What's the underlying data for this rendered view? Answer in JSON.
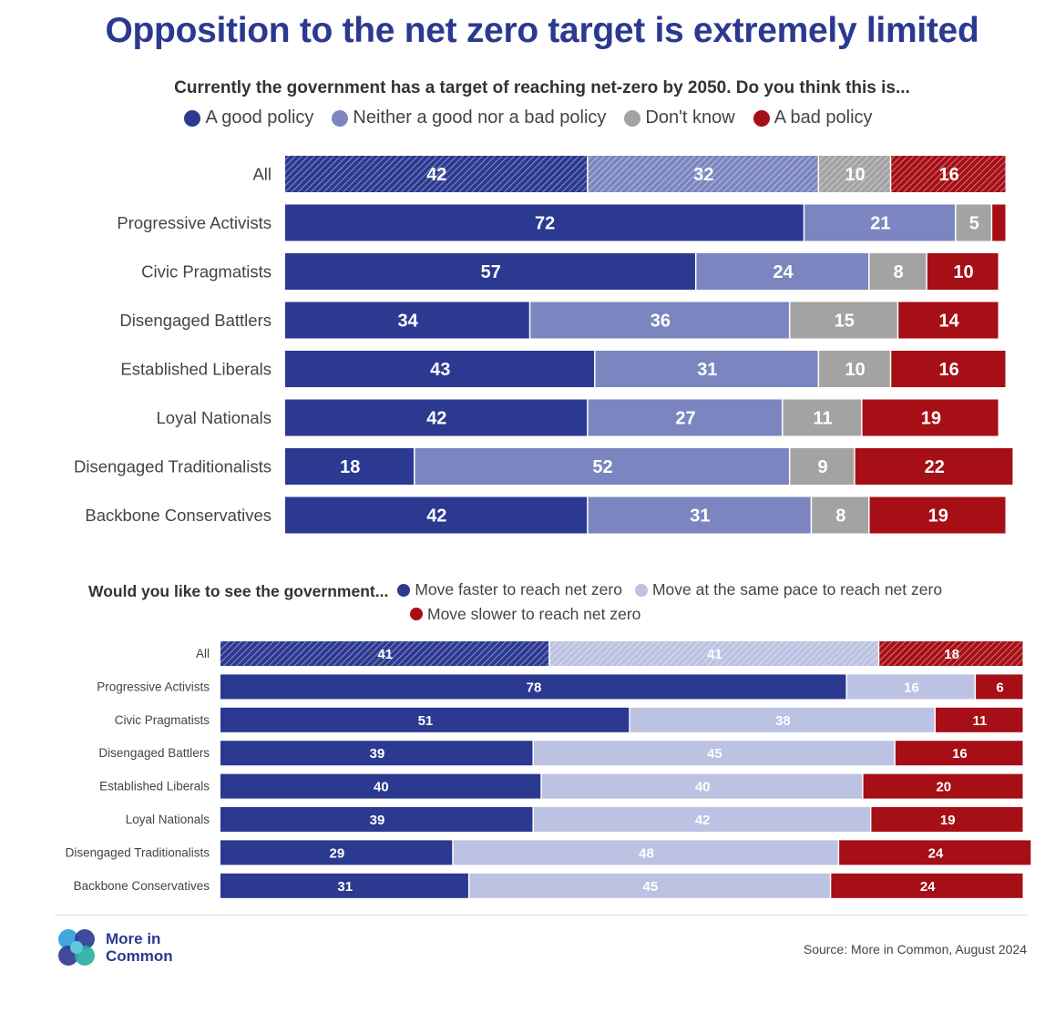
{
  "title": "Opposition to the net zero target is extremely limited",
  "colors": {
    "good": "#2b3990",
    "neither": "#7b86c0",
    "dontknow": "#a3a3a3",
    "bad": "#a50f15",
    "faster": "#2b3990",
    "same": "#bcc2e2",
    "slower": "#a50f15"
  },
  "chart_data": [
    {
      "type": "bar",
      "orientation": "horizontal",
      "stacked": true,
      "title": "Currently the government has a target of reaching net-zero by 2050. Do you think this is...",
      "categories": [
        "All",
        "Progressive Activists",
        "Civic Pragmatists",
        "Disengaged Battlers",
        "Established Liberals",
        "Loyal Nationals",
        "Disengaged Traditionalists",
        "Backbone Conservatives"
      ],
      "series": [
        {
          "name": "A good policy",
          "color_key": "good",
          "values": [
            42,
            72,
            57,
            34,
            43,
            42,
            18,
            42
          ]
        },
        {
          "name": "Neither a good nor a bad policy",
          "color_key": "neither",
          "values": [
            32,
            21,
            24,
            36,
            31,
            27,
            52,
            31
          ]
        },
        {
          "name": "Don't know",
          "color_key": "dontknow",
          "values": [
            10,
            5,
            8,
            15,
            10,
            11,
            9,
            8
          ]
        },
        {
          "name": "A bad policy",
          "color_key": "bad",
          "values": [
            16,
            2,
            10,
            14,
            16,
            19,
            22,
            19
          ]
        }
      ],
      "value_labels": [
        [
          "42",
          "72",
          "57",
          "34",
          "43",
          "42",
          "18",
          "42"
        ],
        [
          "32",
          "21",
          "24",
          "36",
          "31",
          "27",
          "52",
          "31"
        ],
        [
          "10",
          "5",
          "8",
          "15",
          "10",
          "11",
          "9",
          "8"
        ],
        [
          "16",
          "",
          "10",
          "14",
          "16",
          "19",
          "22",
          "19"
        ]
      ],
      "hatched_categories": [
        "All"
      ],
      "xlim": [
        0,
        100
      ]
    },
    {
      "type": "bar",
      "orientation": "horizontal",
      "stacked": true,
      "title": "Would you like to see the government...",
      "categories": [
        "All",
        "Progressive Activists",
        "Civic Pragmatists",
        "Disengaged Battlers",
        "Established Liberals",
        "Loyal Nationals",
        "Disengaged Traditionalists",
        "Backbone Conservatives"
      ],
      "series": [
        {
          "name": "Move faster to reach net zero",
          "color_key": "faster",
          "values": [
            41,
            78,
            51,
            39,
            40,
            39,
            29,
            31
          ]
        },
        {
          "name": "Move at the same pace to reach net zero",
          "color_key": "same",
          "values": [
            41,
            16,
            38,
            45,
            40,
            42,
            48,
            45
          ]
        },
        {
          "name": "Move slower to reach net zero",
          "color_key": "slower",
          "values": [
            18,
            6,
            11,
            16,
            20,
            19,
            24,
            24
          ]
        }
      ],
      "value_labels": [
        [
          "41",
          "78",
          "51",
          "39",
          "40",
          "39",
          "29",
          "31"
        ],
        [
          "41",
          "16",
          "38",
          "45",
          "40",
          "42",
          "48",
          "45"
        ],
        [
          "18",
          "6",
          "11",
          "16",
          "20",
          "19",
          "24",
          "24"
        ]
      ],
      "hatched_categories": [
        "All"
      ],
      "xlim": [
        0,
        100
      ]
    }
  ],
  "footer": {
    "logo_line1": "More in",
    "logo_line2": "Common",
    "source": "Source: More in Common, August 2024"
  }
}
